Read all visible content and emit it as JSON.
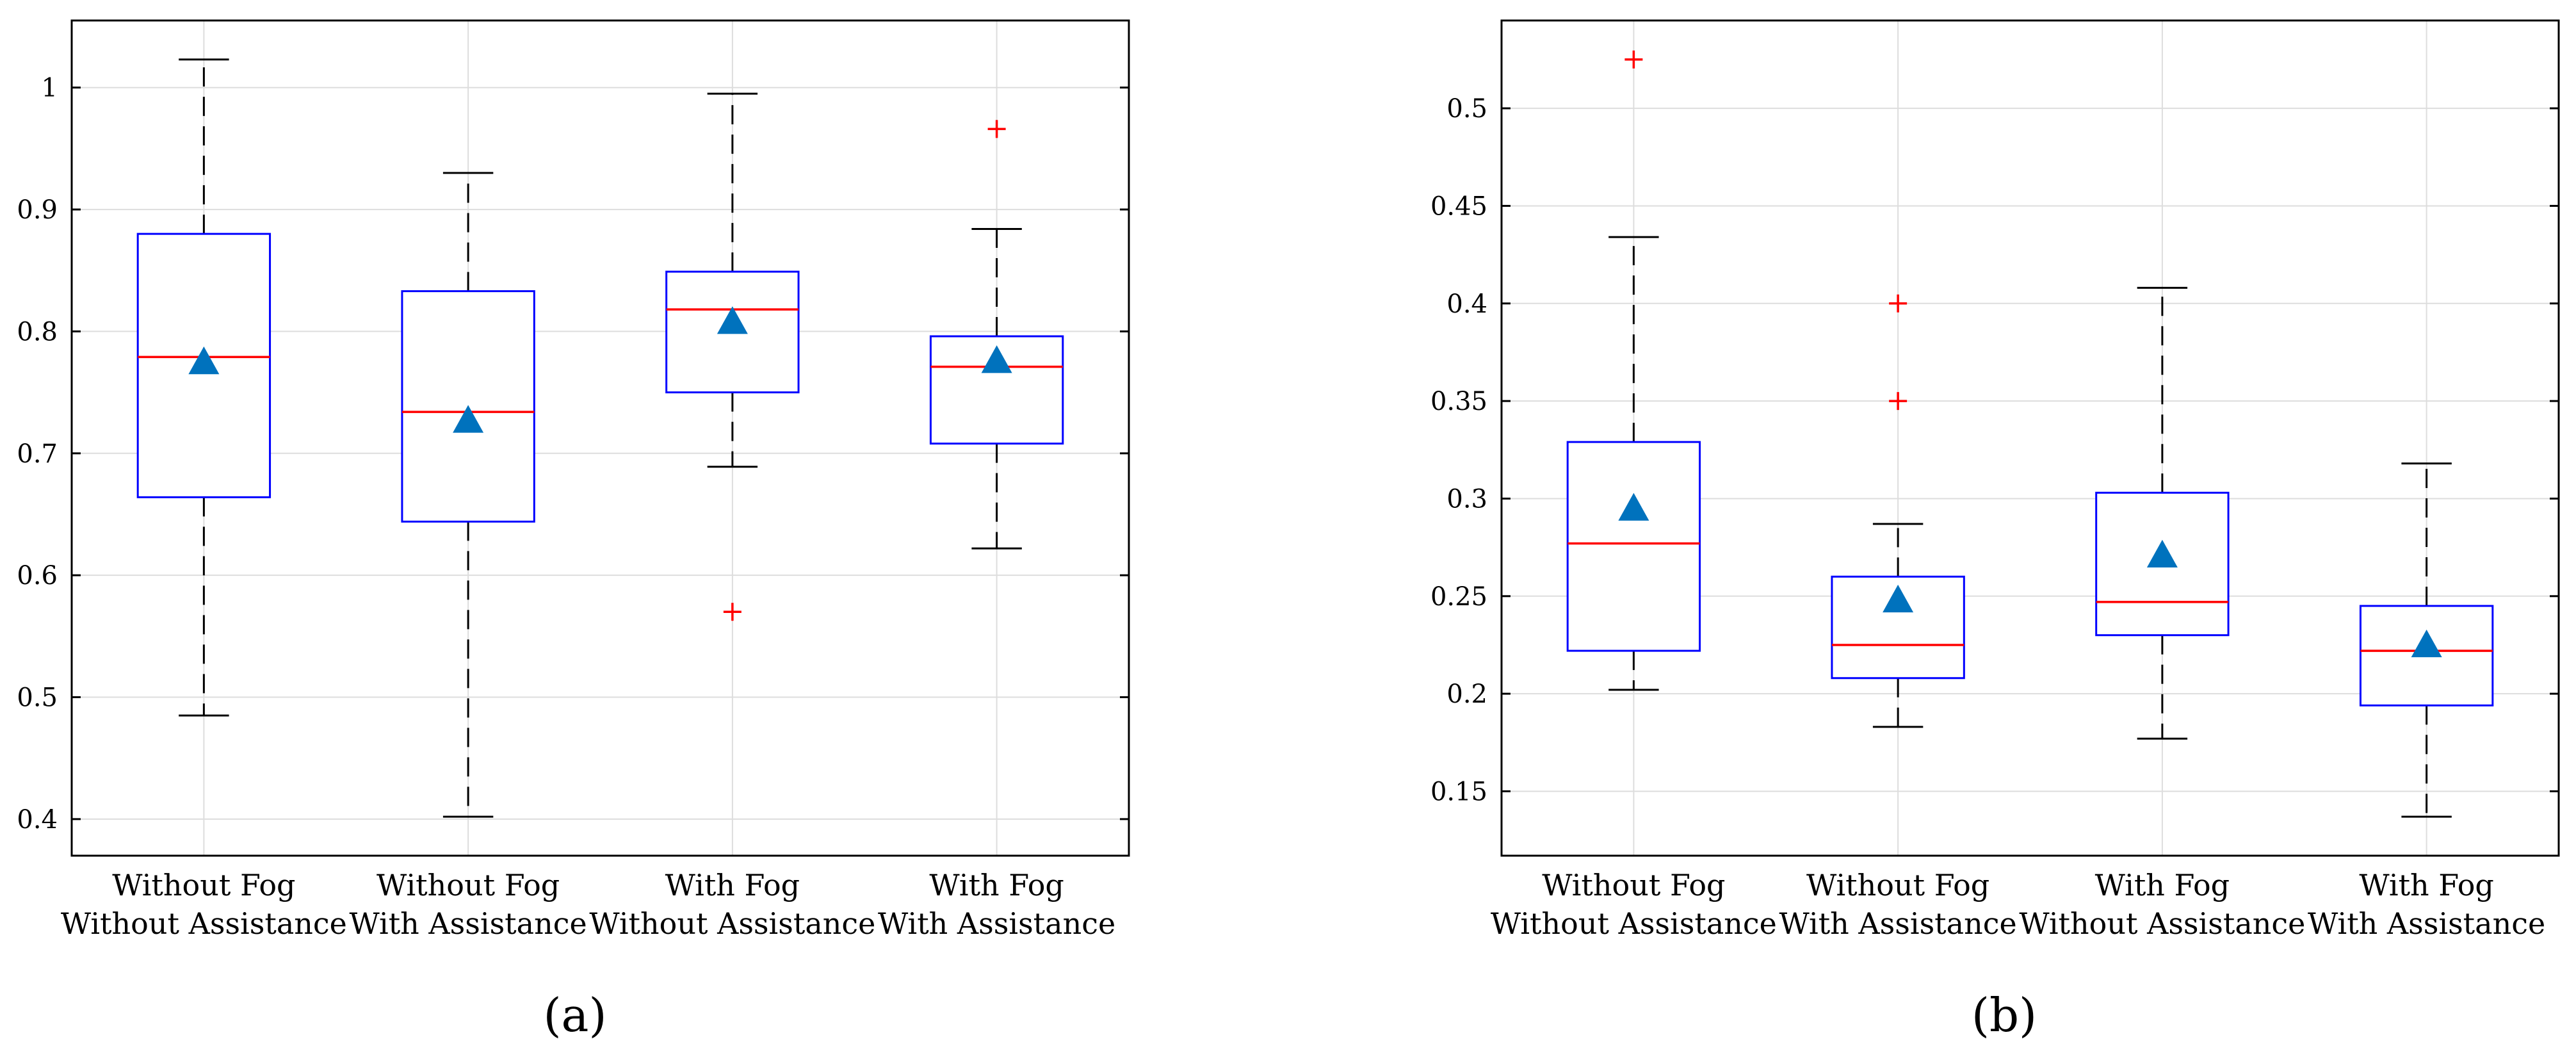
{
  "colors": {
    "box": "#0000ff",
    "median": "#ff0000",
    "outlier": "#ff0000",
    "mean_marker": "#0072bd",
    "whisker": "#000000",
    "grid": "#dddddd",
    "axes": "#000000"
  },
  "chart_data": [
    {
      "type": "box",
      "panel_label": "(a)",
      "categories": [
        [
          "Without Fog",
          "Without Assistance"
        ],
        [
          "Without Fog",
          "With Assistance"
        ],
        [
          "With Fog",
          "Without Assistance"
        ],
        [
          "With Fog",
          "With Assistance"
        ]
      ],
      "ylim": [
        0.37,
        1.055
      ],
      "yticks": [
        0.4,
        0.5,
        0.6,
        0.7,
        0.8,
        0.9,
        1.0
      ],
      "ytick_labels": [
        "0.4",
        "0.5",
        "0.6",
        "0.7",
        "0.8",
        "0.9",
        "1"
      ],
      "grid": true,
      "boxes": [
        {
          "whisker_low": 0.485,
          "q1": 0.664,
          "median": 0.779,
          "q3": 0.88,
          "whisker_high": 1.023,
          "mean": 0.775,
          "outliers": []
        },
        {
          "whisker_low": 0.402,
          "q1": 0.644,
          "median": 0.734,
          "q3": 0.833,
          "whisker_high": 0.93,
          "mean": 0.727,
          "outliers": []
        },
        {
          "whisker_low": 0.689,
          "q1": 0.75,
          "median": 0.818,
          "q3": 0.849,
          "whisker_high": 0.995,
          "mean": 0.808,
          "outliers": [
            0.57
          ]
        },
        {
          "whisker_low": 0.622,
          "q1": 0.708,
          "median": 0.771,
          "q3": 0.796,
          "whisker_high": 0.884,
          "mean": 0.776,
          "outliers": [
            0.966
          ]
        }
      ]
    },
    {
      "type": "box",
      "panel_label": "(b)",
      "categories": [
        [
          "Without Fog",
          "Without Assistance"
        ],
        [
          "Without Fog",
          "With Assistance"
        ],
        [
          "With Fog",
          "Without Assistance"
        ],
        [
          "With Fog",
          "With Assistance"
        ]
      ],
      "ylim": [
        0.117,
        0.545
      ],
      "yticks": [
        0.15,
        0.2,
        0.25,
        0.3,
        0.35,
        0.4,
        0.45,
        0.5
      ],
      "ytick_labels": [
        "0.15",
        "0.2",
        "0.25",
        "0.3",
        "0.35",
        "0.4",
        "0.45",
        "0.5"
      ],
      "grid": true,
      "boxes": [
        {
          "whisker_low": 0.202,
          "q1": 0.222,
          "median": 0.277,
          "q3": 0.329,
          "whisker_high": 0.434,
          "mean": 0.295,
          "outliers": [
            0.525
          ]
        },
        {
          "whisker_low": 0.183,
          "q1": 0.208,
          "median": 0.225,
          "q3": 0.26,
          "whisker_high": 0.287,
          "mean": 0.248,
          "outliers": [
            0.35,
            0.4
          ]
        },
        {
          "whisker_low": 0.177,
          "q1": 0.23,
          "median": 0.247,
          "q3": 0.303,
          "whisker_high": 0.408,
          "mean": 0.271,
          "outliers": []
        },
        {
          "whisker_low": 0.137,
          "q1": 0.194,
          "median": 0.222,
          "q3": 0.245,
          "whisker_high": 0.318,
          "mean": 0.225,
          "outliers": []
        }
      ]
    }
  ]
}
